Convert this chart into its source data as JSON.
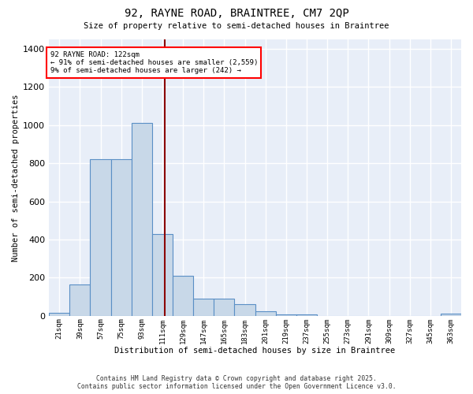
{
  "title_line1": "92, RAYNE ROAD, BRAINTREE, CM7 2QP",
  "title_line2": "Size of property relative to semi-detached houses in Braintree",
  "xlabel": "Distribution of semi-detached houses by size in Braintree",
  "ylabel": "Number of semi-detached properties",
  "bar_color": "#c8d8e8",
  "bar_edge_color": "#5a8fc5",
  "background_color": "#e8eef8",
  "grid_color": "white",
  "vline_x": 122,
  "vline_color": "#8b0000",
  "annotation_title": "92 RAYNE ROAD: 122sqm",
  "annotation_line2": "← 91% of semi-detached houses are smaller (2,559)",
  "annotation_line3": "9% of semi-detached houses are larger (242) →",
  "bin_edges": [
    21,
    39,
    57,
    75,
    93,
    111,
    129,
    147,
    165,
    183,
    201,
    219,
    237,
    255,
    273,
    291,
    309,
    327,
    345,
    363,
    381
  ],
  "counts": [
    15,
    165,
    820,
    820,
    1010,
    430,
    210,
    90,
    90,
    60,
    22,
    8,
    8,
    0,
    0,
    0,
    0,
    0,
    0,
    12
  ],
  "ylim": [
    0,
    1450
  ],
  "yticks": [
    0,
    200,
    400,
    600,
    800,
    1000,
    1200,
    1400
  ],
  "footer_line1": "Contains HM Land Registry data © Crown copyright and database right 2025.",
  "footer_line2": "Contains public sector information licensed under the Open Government Licence v3.0."
}
